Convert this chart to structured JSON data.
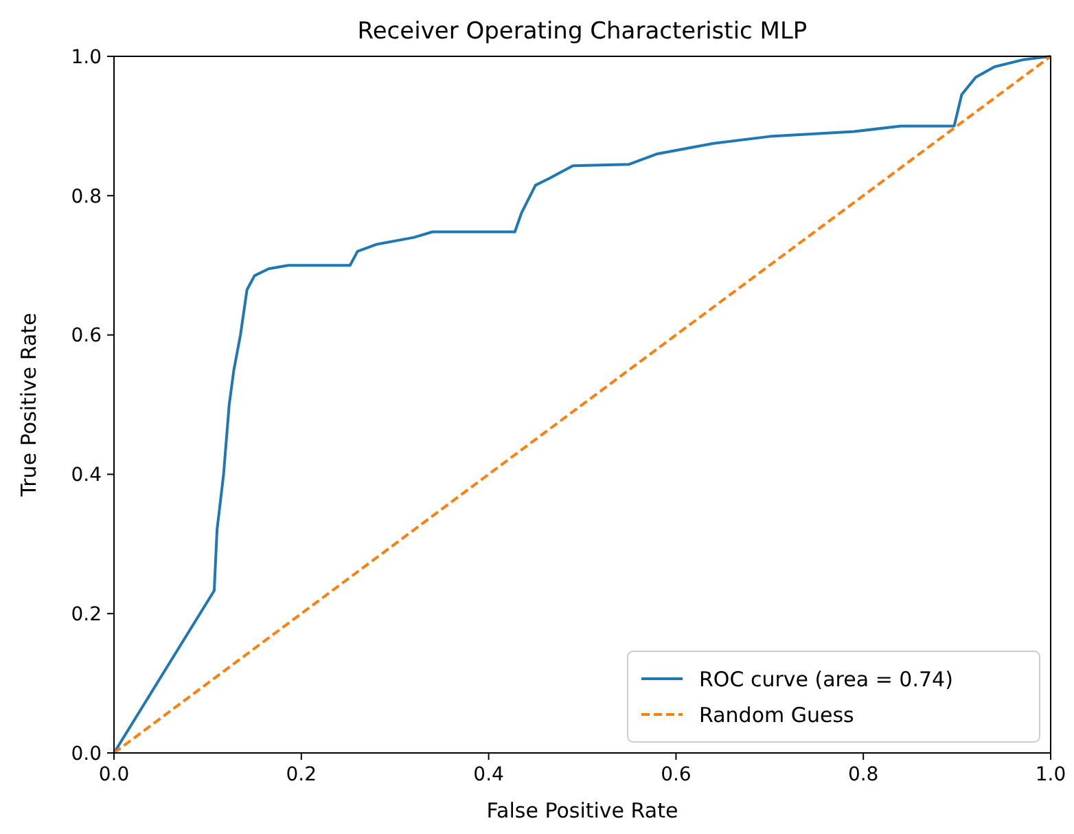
{
  "chart_data": {
    "type": "line",
    "title": "Receiver Operating Characteristic MLP",
    "xlabel": "False Positive Rate",
    "ylabel": "True Positive Rate",
    "xlim": [
      0,
      1
    ],
    "ylim": [
      0,
      1
    ],
    "xticks": [
      {
        "value": 0,
        "label": "0.0"
      },
      {
        "value": 0.2,
        "label": "0.2"
      },
      {
        "value": 0.4,
        "label": "0.4"
      },
      {
        "value": 0.6,
        "label": "0.6"
      },
      {
        "value": 0.8,
        "label": "0.8"
      },
      {
        "value": 1,
        "label": "1.0"
      }
    ],
    "yticks": [
      {
        "value": 0,
        "label": "0.0"
      },
      {
        "value": 0.2,
        "label": "0.2"
      },
      {
        "value": 0.4,
        "label": "0.4"
      },
      {
        "value": 0.6,
        "label": "0.6"
      },
      {
        "value": 0.8,
        "label": "0.8"
      },
      {
        "value": 1,
        "label": "1.0"
      }
    ],
    "legend": "bottom right",
    "grid": false,
    "series": [
      {
        "name": "ROC curve (area = 0.74)",
        "color": "#1f77b4",
        "line_style": "solid",
        "x": [
          0,
          0.107,
          0.11,
          0.117,
          0.123,
          0.128,
          0.135,
          0.142,
          0.15,
          0.165,
          0.186,
          0.252,
          0.26,
          0.28,
          0.32,
          0.34,
          0.428,
          0.435,
          0.45,
          0.465,
          0.49,
          0.55,
          0.58,
          0.64,
          0.7,
          0.79,
          0.84,
          0.897,
          0.905,
          0.92,
          0.94,
          0.97,
          1
        ],
        "values": [
          0,
          0.233,
          0.32,
          0.4,
          0.5,
          0.55,
          0.6,
          0.665,
          0.685,
          0.695,
          0.7,
          0.7,
          0.72,
          0.73,
          0.74,
          0.748,
          0.748,
          0.775,
          0.815,
          0.825,
          0.843,
          0.845,
          0.86,
          0.875,
          0.885,
          0.892,
          0.9,
          0.9,
          0.945,
          0.97,
          0.985,
          0.995,
          1
        ]
      },
      {
        "name": "Random Guess",
        "color": "#ff7f0e",
        "line_style": "dashed",
        "x": [
          0,
          1
        ],
        "values": [
          0,
          1
        ]
      }
    ]
  }
}
